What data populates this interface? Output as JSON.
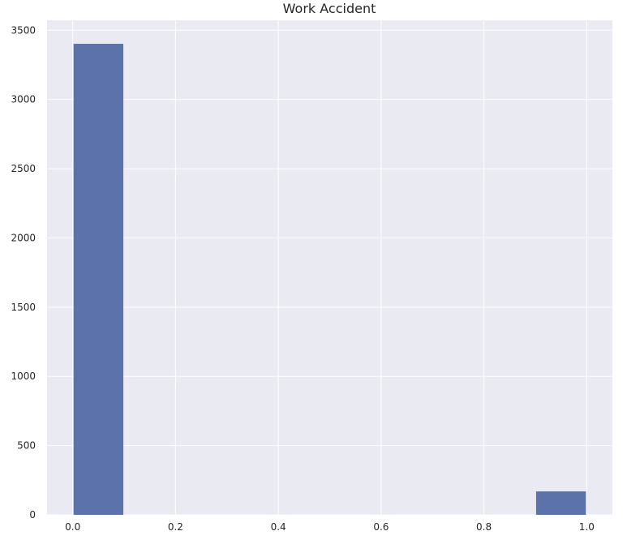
{
  "chart_data": {
    "type": "bar",
    "title": "Work Accident",
    "xlabel": "",
    "ylabel": "",
    "bins": [
      {
        "x0": 0.0,
        "x1": 0.1,
        "value": 3402
      },
      {
        "x0": 0.1,
        "x1": 0.2,
        "value": 0
      },
      {
        "x0": 0.2,
        "x1": 0.3,
        "value": 0
      },
      {
        "x0": 0.3,
        "x1": 0.4,
        "value": 0
      },
      {
        "x0": 0.4,
        "x1": 0.5,
        "value": 0
      },
      {
        "x0": 0.5,
        "x1": 0.6,
        "value": 0
      },
      {
        "x0": 0.6,
        "x1": 0.7,
        "value": 0
      },
      {
        "x0": 0.7,
        "x1": 0.8,
        "value": 0
      },
      {
        "x0": 0.8,
        "x1": 0.9,
        "value": 0
      },
      {
        "x0": 0.9,
        "x1": 1.0,
        "value": 169
      }
    ],
    "xlim": [
      -0.05,
      1.05
    ],
    "ylim": [
      0,
      3572
    ],
    "xticks": [
      0.0,
      0.2,
      0.4,
      0.6,
      0.8,
      1.0
    ],
    "xtick_labels": [
      "0.0",
      "0.2",
      "0.4",
      "0.6",
      "0.8",
      "1.0"
    ],
    "yticks": [
      0,
      500,
      1000,
      1500,
      2000,
      2500,
      3000,
      3500
    ],
    "ytick_labels": [
      "0",
      "500",
      "1000",
      "1500",
      "2000",
      "2500",
      "3000",
      "3500"
    ],
    "grid": true,
    "colors": {
      "bar": "#5b72aa",
      "background": "#eaeaf2",
      "grid": "#ffffff",
      "text": "#262626"
    }
  }
}
